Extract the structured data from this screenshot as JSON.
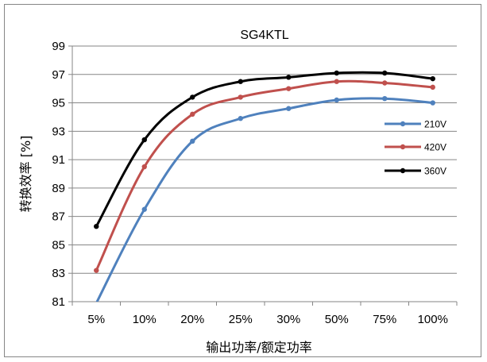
{
  "chart_data": {
    "type": "line",
    "title": "SG4KTL",
    "xlabel": "输出功率/额定功率",
    "ylabel": "转换效率 [%]",
    "categories": [
      "5%",
      "10%",
      "20%",
      "25%",
      "30%",
      "50%",
      "75%",
      "100%"
    ],
    "ylim": [
      81,
      99
    ],
    "yticks": [
      81,
      83,
      85,
      87,
      89,
      91,
      93,
      95,
      97,
      99
    ],
    "grid": true,
    "legend_position": "right",
    "series": [
      {
        "name": "210V",
        "color": "#4f81bd",
        "values": [
          80.9,
          87.5,
          92.3,
          93.9,
          94.6,
          95.2,
          95.3,
          95.0
        ]
      },
      {
        "name": "420V",
        "color": "#c0504d",
        "values": [
          83.2,
          90.5,
          94.2,
          95.4,
          96.0,
          96.5,
          96.4,
          96.1
        ]
      },
      {
        "name": "360V",
        "color": "#000000",
        "values": [
          86.3,
          92.4,
          95.4,
          96.5,
          96.8,
          97.1,
          97.1,
          96.7
        ]
      }
    ]
  }
}
